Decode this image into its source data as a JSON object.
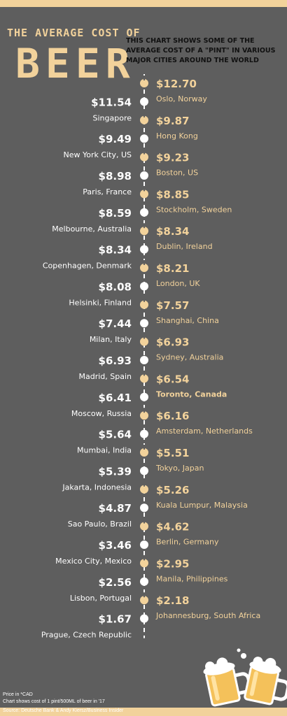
{
  "header": {
    "title_small": "THE AVERAGE COST OF",
    "title_big": "BEER",
    "subtitle": "THIS CHART SHOWS SOME OF THE AVERAGE COST OF A \"PINT\" IN VARIOUS MAJOR CITIES AROUND THE WORLD"
  },
  "footer": {
    "note1": "Price in *CAD",
    "note2": "Chart shows cost of 1 pint/500ML of beer in '17",
    "source": "Source: Deutsche Bank & Andy Kiersz/Business Insider"
  },
  "colors": {
    "background": "#5e5e5e",
    "accent": "#f2d29b",
    "white": "#ffffff"
  },
  "chart_data": {
    "type": "timeline",
    "unit": "CAD",
    "highlight": "Toronto, Canada",
    "points": [
      {
        "city": "Oslo, Norway",
        "price": "$12.70",
        "side": "right"
      },
      {
        "city": "Singapore",
        "price": "$11.54",
        "side": "left"
      },
      {
        "city": "Hong Kong",
        "price": "$9.87",
        "side": "right"
      },
      {
        "city": "New  York City, US",
        "price": "$9.49",
        "side": "left"
      },
      {
        "city": "Boston, US",
        "price": "$9.23",
        "side": "right"
      },
      {
        "city": "Paris, France",
        "price": "$8.98",
        "side": "left"
      },
      {
        "city": "Stockholm, Sweden",
        "price": "$8.85",
        "side": "right"
      },
      {
        "city": "Melbourne, Australia",
        "price": "$8.59",
        "side": "left"
      },
      {
        "city": "Dublin, Ireland",
        "price": "$8.34",
        "side": "right"
      },
      {
        "city": "Copenhagen, Denmark",
        "price": "$8.34",
        "side": "left"
      },
      {
        "city": "London, UK",
        "price": "$8.21",
        "side": "right"
      },
      {
        "city": "Helsinki, Finland",
        "price": "$8.08",
        "side": "left"
      },
      {
        "city": "Shanghai, China",
        "price": "$7.57",
        "side": "right"
      },
      {
        "city": "Milan, Italy",
        "price": "$7.44",
        "side": "left"
      },
      {
        "city": "Sydney, Australia",
        "price": "$6.93",
        "side": "right"
      },
      {
        "city": "Madrid, Spain",
        "price": "$6.93",
        "side": "left"
      },
      {
        "city": "Toronto, Canada",
        "price": "$6.54",
        "side": "right"
      },
      {
        "city": "Moscow, Russia",
        "price": "$6.41",
        "side": "left"
      },
      {
        "city": "Amsterdam, Netherlands",
        "price": "$6.16",
        "side": "right"
      },
      {
        "city": "Mumbai, India",
        "price": "$5.64",
        "side": "left"
      },
      {
        "city": "Tokyo, Japan",
        "price": "$5.51",
        "side": "right"
      },
      {
        "city": "Jakarta, Indonesia",
        "price": "$5.39",
        "side": "left"
      },
      {
        "city": "Kuala Lumpur, Malaysia",
        "price": "$5.26",
        "side": "right"
      },
      {
        "city": "Sao Paulo, Brazil",
        "price": "$4.87",
        "side": "left"
      },
      {
        "city": "Berlin, Germany",
        "price": "$4.62",
        "side": "right"
      },
      {
        "city": "Mexico City, Mexico",
        "price": "$3.46",
        "side": "left"
      },
      {
        "city": "Manila, Philippines",
        "price": "$2.95",
        "side": "right"
      },
      {
        "city": "Lisbon, Portugal",
        "price": "$2.56",
        "side": "left"
      },
      {
        "city": "Johannesburg, South Africa",
        "price": "$2.18",
        "side": "right"
      },
      {
        "city": "Prague, Czech Republic",
        "price": "$1.67",
        "side": "left"
      }
    ]
  }
}
